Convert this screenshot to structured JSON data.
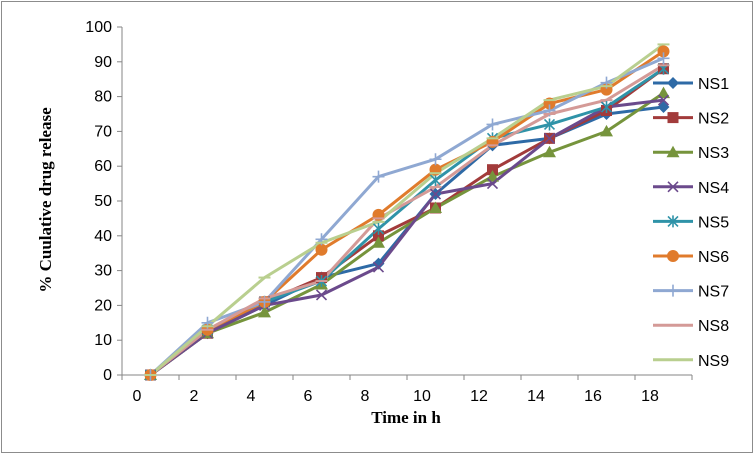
{
  "chart_data": {
    "type": "line",
    "xlabel": "Time in h",
    "ylabel": "% Cuulative drug release",
    "ylim": [
      0,
      100
    ],
    "y_ticks": [
      "0",
      "10",
      "20",
      "30",
      "40",
      "50",
      "60",
      "70",
      "80",
      "90",
      "100"
    ],
    "x_ticks": [
      "0",
      "2",
      "4",
      "6",
      "8",
      "10",
      "12",
      "14",
      "16",
      "18"
    ],
    "grid": false,
    "legend_position": "right",
    "series": [
      {
        "name": "NS1",
        "color": "#2e6aa6",
        "marker": "diamond",
        "values": [
          0,
          12,
          20,
          28,
          32,
          52,
          66,
          68,
          75,
          77
        ]
      },
      {
        "name": "NS2",
        "color": "#a23b3b",
        "marker": "square",
        "values": [
          0,
          12,
          21,
          28,
          40,
          48,
          59,
          68,
          76,
          88
        ]
      },
      {
        "name": "NS3",
        "color": "#76943c",
        "marker": "triangle",
        "values": [
          0,
          12,
          18,
          26,
          38,
          48,
          57,
          64,
          70,
          81
        ]
      },
      {
        "name": "NS4",
        "color": "#6b4a8c",
        "marker": "x",
        "values": [
          0,
          12,
          20,
          23,
          31,
          52,
          55,
          68,
          77,
          79
        ]
      },
      {
        "name": "NS5",
        "color": "#2f93a8",
        "marker": "asterisk",
        "values": [
          0,
          13,
          21,
          27,
          42,
          56,
          68,
          72,
          77,
          88
        ]
      },
      {
        "name": "NS6",
        "color": "#e07b2c",
        "marker": "circle",
        "values": [
          0,
          13,
          21,
          36,
          46,
          59,
          67,
          78,
          82,
          93
        ]
      },
      {
        "name": "NS7",
        "color": "#8fa8d2",
        "marker": "plus",
        "values": [
          0,
          15,
          21,
          39,
          57,
          62,
          72,
          76,
          84,
          91
        ]
      },
      {
        "name": "NS8",
        "color": "#d49a97",
        "marker": "dash",
        "values": [
          0,
          13,
          22,
          27,
          45,
          54,
          66,
          75,
          79,
          89
        ]
      },
      {
        "name": "NS9",
        "color": "#b9cf8f",
        "marker": "dash",
        "values": [
          0,
          14,
          28,
          38,
          44,
          58,
          68,
          79,
          83,
          95
        ]
      }
    ]
  }
}
